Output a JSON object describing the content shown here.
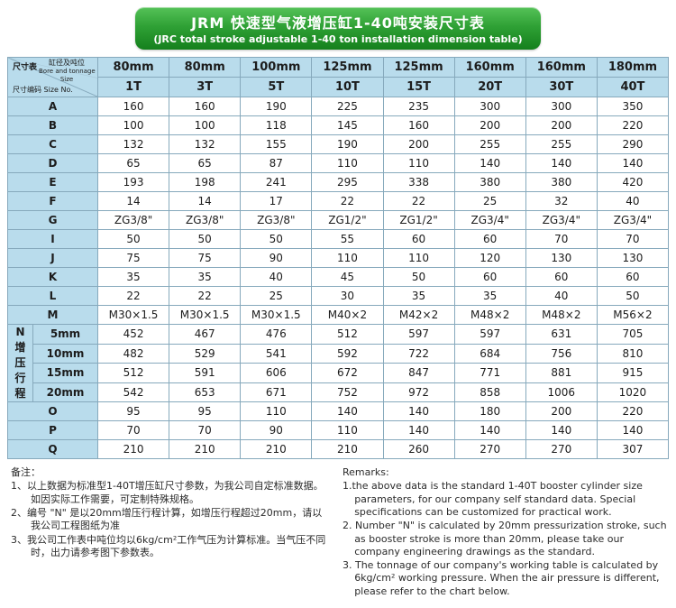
{
  "title": {
    "line1": "JRM 快速型气液增压缸1-40吨安装尺寸表",
    "line2": "(JRC total stroke adjustable 1-40 ton installation dimension table)"
  },
  "table": {
    "corner": {
      "size_table_cn": "尺寸表",
      "bore_cn": "缸径及吨位",
      "bore_en": "Bore and tonnage",
      "size_en": "Size",
      "code_cn": "尺寸编码",
      "code_en": "Size No."
    },
    "bore_headers": [
      "80mm",
      "80mm",
      "100mm",
      "125mm",
      "125mm",
      "160mm",
      "160mm",
      "180mm"
    ],
    "tonnage_headers": [
      "1T",
      "3T",
      "5T",
      "10T",
      "15T",
      "20T",
      "30T",
      "40T"
    ],
    "rows_before_n": [
      {
        "label": "A",
        "values": [
          "160",
          "160",
          "190",
          "225",
          "235",
          "300",
          "300",
          "350"
        ]
      },
      {
        "label": "B",
        "values": [
          "100",
          "100",
          "118",
          "145",
          "160",
          "200",
          "200",
          "220"
        ]
      },
      {
        "label": "C",
        "values": [
          "132",
          "132",
          "155",
          "190",
          "200",
          "255",
          "255",
          "290"
        ]
      },
      {
        "label": "D",
        "values": [
          "65",
          "65",
          "87",
          "110",
          "110",
          "140",
          "140",
          "140"
        ]
      },
      {
        "label": "E",
        "values": [
          "193",
          "198",
          "241",
          "295",
          "338",
          "380",
          "380",
          "420"
        ]
      },
      {
        "label": "F",
        "values": [
          "14",
          "14",
          "17",
          "22",
          "22",
          "25",
          "32",
          "40"
        ]
      },
      {
        "label": "G",
        "values": [
          "ZG3/8\"",
          "ZG3/8\"",
          "ZG3/8\"",
          "ZG1/2\"",
          "ZG1/2\"",
          "ZG3/4\"",
          "ZG3/4\"",
          "ZG3/4\""
        ]
      },
      {
        "label": "I",
        "values": [
          "50",
          "50",
          "50",
          "55",
          "60",
          "60",
          "70",
          "70"
        ]
      },
      {
        "label": "J",
        "values": [
          "75",
          "75",
          "90",
          "110",
          "110",
          "120",
          "130",
          "130"
        ]
      },
      {
        "label": "K",
        "values": [
          "35",
          "35",
          "40",
          "45",
          "50",
          "60",
          "60",
          "60"
        ]
      },
      {
        "label": "L",
        "values": [
          "22",
          "22",
          "25",
          "30",
          "35",
          "35",
          "40",
          "50"
        ]
      },
      {
        "label": "M",
        "values": [
          "M30×1.5",
          "M30×1.5",
          "M30×1.5",
          "M40×2",
          "M42×2",
          "M48×2",
          "M48×2",
          "M56×2"
        ]
      }
    ],
    "n_group": {
      "letter": "N",
      "vertical_cn": "增压行程",
      "sub_rows": [
        {
          "label": "5mm",
          "values": [
            "452",
            "467",
            "476",
            "512",
            "597",
            "597",
            "631",
            "705"
          ]
        },
        {
          "label": "10mm",
          "values": [
            "482",
            "529",
            "541",
            "592",
            "722",
            "684",
            "756",
            "810"
          ]
        },
        {
          "label": "15mm",
          "values": [
            "512",
            "591",
            "606",
            "672",
            "847",
            "771",
            "881",
            "915"
          ]
        },
        {
          "label": "20mm",
          "values": [
            "542",
            "653",
            "671",
            "752",
            "972",
            "858",
            "1006",
            "1020"
          ]
        }
      ]
    },
    "rows_after_n": [
      {
        "label": "O",
        "values": [
          "95",
          "95",
          "110",
          "140",
          "140",
          "180",
          "200",
          "220"
        ]
      },
      {
        "label": "P",
        "values": [
          "70",
          "70",
          "90",
          "110",
          "140",
          "140",
          "140",
          "140"
        ]
      },
      {
        "label": "Q",
        "values": [
          "210",
          "210",
          "210",
          "210",
          "260",
          "270",
          "270",
          "307"
        ]
      }
    ]
  },
  "notes_cn": {
    "heading": "备注：",
    "items": [
      "1、以上数据为标准型1-40T增压缸尺寸参数，为我公司自定标准数据。如因实际工作需要，可定制特殊规格。",
      "2、编号 \"N\" 是以20mm增压行程计算，如增压行程超过20mm，请以我公司工程图纸为准",
      "3、我公司工作表中吨位均以6kg/cm²工作气压为计算标准。当气压不同时，出力请参考图下参数表。"
    ]
  },
  "notes_en": {
    "heading": "Remarks:",
    "items": [
      "1.the above data is the standard 1-40T booster cylinder size parameters, for our company self standard data. Special specifications can be customized for practical work.",
      "2. Number \"N\" is calculated by 20mm pressurization stroke, such as booster stroke is more than 20mm, please take our company engineering drawings as the standard.",
      "3. The tonnage of our company's working table is calculated by 6kg/cm² working pressure. When the air pressure is different, please refer to the chart below."
    ]
  },
  "colors": {
    "title_green_top": "#55c258",
    "title_green_bottom": "#15801d",
    "header_blue": "#b9dcec",
    "border_blue": "#86a9bc"
  }
}
